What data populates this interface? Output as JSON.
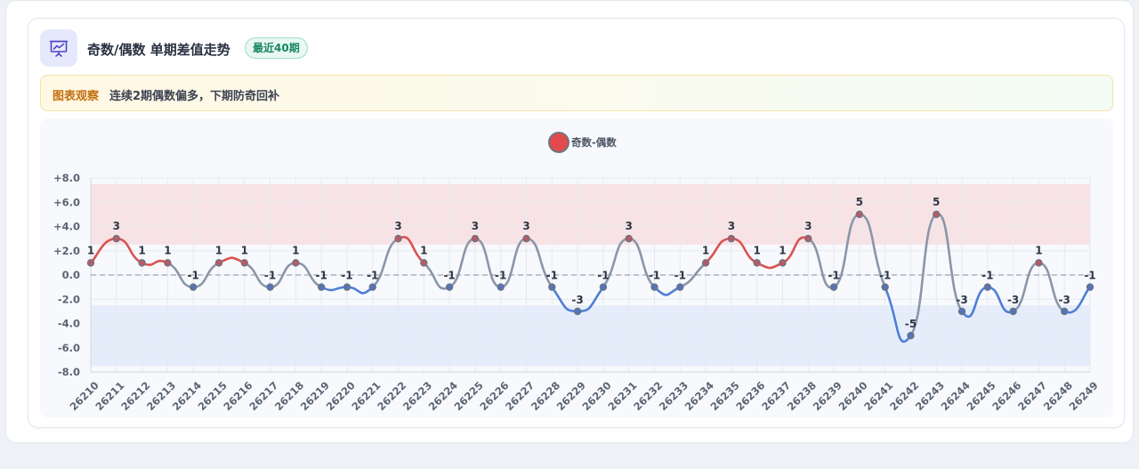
{
  "header": {
    "icon": "presentation-chart-icon",
    "title": "奇数/偶数 单期差值走势",
    "badge": "最近40期"
  },
  "insight": {
    "label": "图表观察",
    "text": "连续2期偶数偏多，下期防奇回补"
  },
  "colors": {
    "positive": "#d9534f",
    "negative": "#4f7fd6",
    "neutral": "#8a96a8",
    "accent": "#17875f"
  },
  "chart_data": {
    "type": "line",
    "legend": "top",
    "categories": [
      "26210",
      "26211",
      "26212",
      "26213",
      "26214",
      "26215",
      "26216",
      "26217",
      "26218",
      "26219",
      "26220",
      "26221",
      "26222",
      "26223",
      "26224",
      "26225",
      "26226",
      "26227",
      "26228",
      "26229",
      "26230",
      "26231",
      "26232",
      "26233",
      "26234",
      "26235",
      "26236",
      "26237",
      "26238",
      "26239",
      "26240",
      "26241",
      "26242",
      "26243",
      "26244",
      "26245",
      "26246",
      "26247",
      "26248",
      "26249"
    ],
    "series": [
      {
        "name": "奇数-偶数",
        "values": [
          1,
          3,
          1,
          1,
          -1,
          1,
          1,
          -1,
          1,
          -1,
          -1,
          -1,
          3,
          1,
          -1,
          3,
          -1,
          3,
          -1,
          -3,
          -1,
          3,
          -1,
          -1,
          1,
          3,
          1,
          1,
          3,
          -1,
          5,
          -1,
          -5,
          5,
          -3,
          -1,
          -3,
          1,
          -3,
          -1
        ]
      }
    ],
    "data_labels": [
      "1",
      "3",
      "1",
      "1",
      "-1",
      "1",
      "1",
      "-1",
      "1",
      "-1",
      "-1",
      "-1",
      "3",
      "1",
      "-1",
      "3",
      "-1",
      "3",
      "-1",
      "-3",
      "-1",
      "3",
      "-1",
      "-1",
      "1",
      "3",
      "1",
      "1",
      "3",
      "-1",
      "5",
      "-1",
      "-5",
      "5",
      "-3",
      "-1",
      "-3",
      "1",
      "-3",
      "-1"
    ],
    "ylim": [
      -8,
      8
    ],
    "yticks": [
      8,
      6,
      4,
      2,
      0,
      -2,
      -4,
      -6,
      -8
    ],
    "ytick_labels": [
      "+8.0",
      "+6.0",
      "+4.0",
      "+2.0",
      "0.0",
      "-2.0",
      "-4.0",
      "-6.0",
      "-8.0"
    ],
    "bands": [
      {
        "from": 2.5,
        "to": 7.5,
        "color": "#f7e3e6"
      },
      {
        "from": -7.5,
        "to": -2.5,
        "color": "#e6edfa"
      }
    ],
    "reference_line": 0,
    "grid": true
  }
}
